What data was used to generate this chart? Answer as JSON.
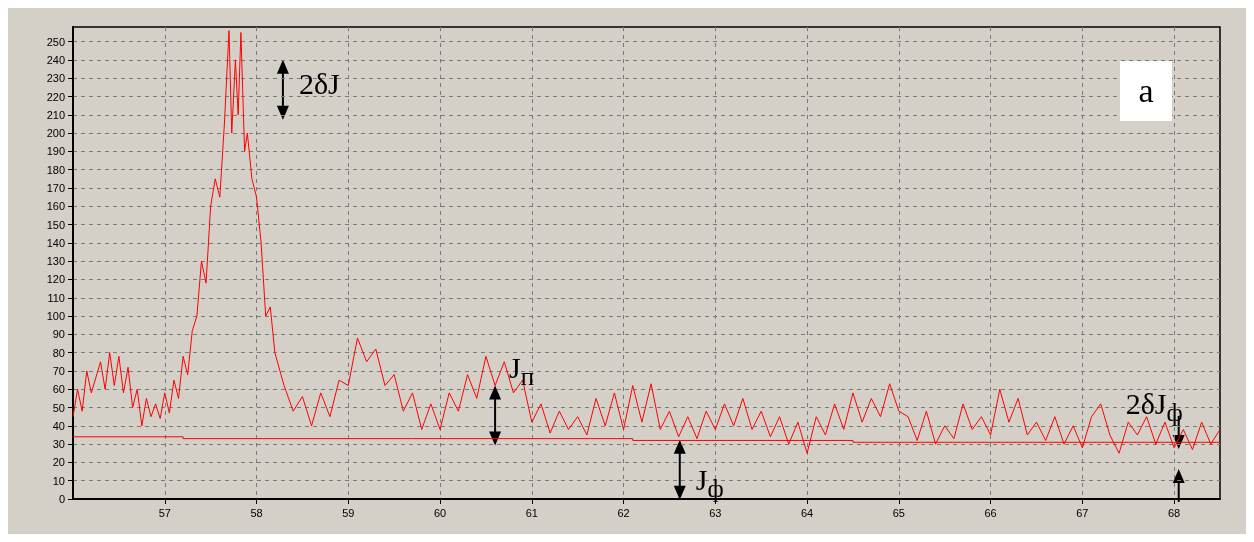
{
  "chart_data": {
    "type": "line",
    "xlim": [
      56,
      68.5
    ],
    "xticks": [
      57,
      58,
      59,
      60,
      61,
      62,
      63,
      64,
      65,
      66,
      67,
      68
    ],
    "ylim": [
      0,
      258
    ],
    "yticks": [
      0,
      10,
      20,
      30,
      40,
      50,
      60,
      70,
      80,
      90,
      100,
      110,
      120,
      130,
      140,
      150,
      160,
      170,
      180,
      190,
      200,
      210,
      220,
      230,
      240,
      250
    ],
    "grid": true,
    "marker": "none",
    "annotations": [
      "a",
      "2δJ",
      {
        "text": "J$_{п}$",
        "x": 60.6,
        "y": 62
      },
      "J$_{ф}$",
      "2δJ$_{ф}$"
    ],
    "series": [
      {
        "color": "#ff0000",
        "x": [
          56.0,
          56.05,
          56.1,
          56.15,
          56.2,
          56.3,
          56.35,
          56.4,
          56.45,
          56.5,
          56.55,
          56.6,
          56.65,
          56.7,
          56.75,
          56.8,
          56.85,
          56.9,
          56.95,
          57.0,
          57.05,
          57.1,
          57.15,
          57.2,
          57.25,
          57.3,
          57.35,
          57.4,
          57.45,
          57.5,
          57.55,
          57.6,
          57.65,
          57.7,
          57.73,
          57.77,
          57.8,
          57.83,
          57.87,
          57.9,
          57.95,
          58.0,
          58.05,
          58.1,
          58.15,
          58.2,
          58.3,
          58.4,
          58.5,
          58.6,
          58.7,
          58.8,
          58.9,
          59.0,
          59.1,
          59.2,
          59.3,
          59.4,
          59.5,
          59.6,
          59.7,
          59.8,
          59.9,
          60.0,
          60.1,
          60.2,
          60.3,
          60.4,
          60.5,
          60.6,
          60.7,
          60.8,
          60.9,
          61.0,
          61.1,
          61.2,
          61.3,
          61.4,
          61.5,
          61.6,
          61.7,
          61.8,
          61.9,
          62.0,
          62.1,
          62.2,
          62.3,
          62.4,
          62.5,
          62.6,
          62.7,
          62.8,
          62.9,
          63.0,
          63.1,
          63.2,
          63.3,
          63.4,
          63.5,
          63.6,
          63.7,
          63.8,
          63.9,
          64.0,
          64.1,
          64.2,
          64.3,
          64.4,
          64.5,
          64.6,
          64.7,
          64.8,
          64.9,
          65.0,
          65.1,
          65.2,
          65.3,
          65.4,
          65.5,
          65.6,
          65.7,
          65.8,
          65.9,
          66.0,
          66.1,
          66.2,
          66.3,
          66.4,
          66.5,
          66.6,
          66.7,
          66.8,
          66.9,
          67.0,
          67.1,
          67.2,
          67.3,
          67.4,
          67.5,
          67.6,
          67.7,
          67.8,
          67.9,
          68.0,
          68.1,
          68.2,
          68.3,
          68.4,
          68.5
        ],
        "values": [
          45,
          60,
          48,
          70,
          58,
          75,
          60,
          80,
          62,
          78,
          58,
          72,
          50,
          60,
          40,
          55,
          45,
          52,
          44,
          58,
          47,
          65,
          55,
          78,
          68,
          92,
          100,
          130,
          118,
          160,
          175,
          165,
          205,
          256,
          200,
          240,
          210,
          255,
          190,
          200,
          175,
          165,
          140,
          100,
          105,
          80,
          62,
          48,
          56,
          40,
          58,
          45,
          65,
          62,
          88,
          75,
          82,
          62,
          68,
          48,
          58,
          38,
          52,
          38,
          58,
          48,
          68,
          55,
          78,
          62,
          75,
          58,
          65,
          42,
          52,
          36,
          48,
          38,
          45,
          35,
          55,
          40,
          58,
          38,
          62,
          42,
          63,
          38,
          48,
          34,
          45,
          33,
          48,
          38,
          52,
          40,
          55,
          38,
          48,
          34,
          45,
          30,
          42,
          25,
          45,
          35,
          52,
          38,
          58,
          42,
          55,
          45,
          63,
          48,
          45,
          32,
          48,
          30,
          40,
          33,
          52,
          38,
          45,
          35,
          60,
          42,
          55,
          35,
          42,
          32,
          45,
          30,
          40,
          28,
          45,
          52,
          35,
          25,
          42,
          35,
          45,
          30,
          42,
          28,
          38,
          27,
          42,
          30,
          38
        ]
      },
      {
        "type": "step",
        "color": "#ff0000",
        "x": [
          56,
          57.2,
          59.7,
          62.1,
          64.5,
          68.5
        ],
        "values": [
          34,
          33,
          33,
          32,
          31,
          31
        ]
      }
    ]
  }
}
